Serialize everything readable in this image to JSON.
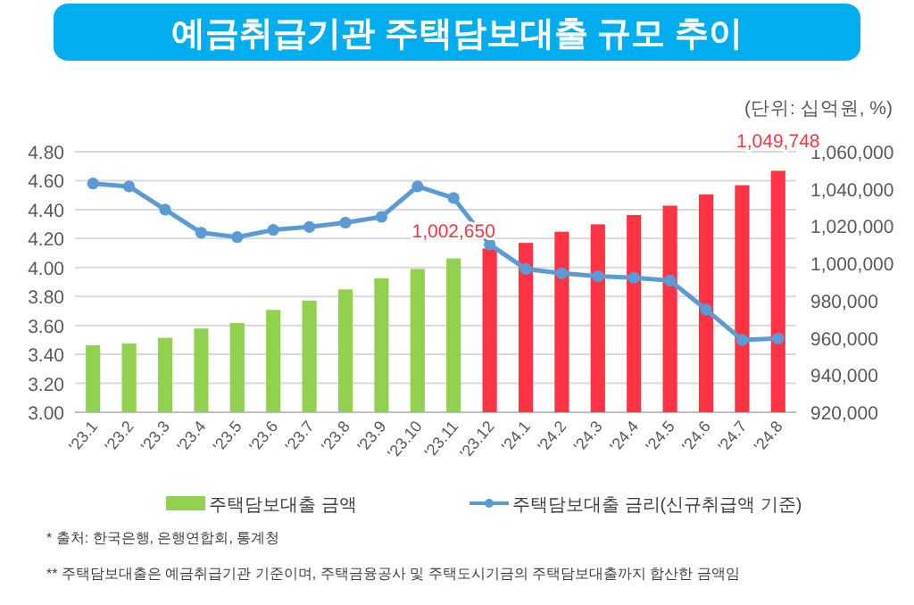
{
  "chart_data": {
    "type": "bar",
    "title": "예금취급기관 주택담보대출 규모 추이",
    "categories": [
      "'23.1",
      "'23.2",
      "'23.3",
      "'23.4",
      "'23.5",
      "'23.6",
      "'23.7",
      "'23.8",
      "'23.9",
      "'23.10",
      "'23.11",
      "'23.12",
      "'24.1",
      "'24.2",
      "'24.3",
      "'24.4",
      "'24.5",
      "'24.6",
      "'24.7",
      "'24.8"
    ],
    "series": [
      {
        "name": "주택담보대출 금액",
        "axis": "y2",
        "color": "#92d050",
        "colors": [
          "#92d050",
          "#92d050",
          "#92d050",
          "#92d050",
          "#92d050",
          "#92d050",
          "#92d050",
          "#92d050",
          "#92d050",
          "#92d050",
          "#92d050",
          "#ff3344",
          "#ff3344",
          "#ff3344",
          "#ff3344",
          "#ff3344",
          "#ff3344",
          "#ff3344",
          "#ff3344",
          "#ff3344"
        ],
        "values": [
          956000,
          957000,
          960000,
          965000,
          968000,
          975000,
          980000,
          986000,
          992000,
          997000,
          1002650,
          1008000,
          1011000,
          1017000,
          1021000,
          1026000,
          1031000,
          1037000,
          1042000,
          1049748
        ],
        "value_labels": [
          null,
          null,
          null,
          null,
          null,
          null,
          null,
          null,
          null,
          null,
          "1,002,650",
          null,
          null,
          null,
          null,
          null,
          null,
          null,
          null,
          "1,049,748"
        ]
      },
      {
        "name": "주택담보대출 금리(신규취급액 기준)",
        "type": "line",
        "color": "#5b9bd5",
        "marker": "circle",
        "values": [
          4.58,
          4.56,
          4.4,
          4.24,
          4.21,
          4.26,
          4.28,
          4.31,
          4.35,
          4.56,
          4.48,
          4.16,
          3.99,
          3.96,
          3.94,
          3.93,
          3.91,
          3.71,
          3.5,
          3.51
        ]
      }
    ],
    "ylim": [
      3.0,
      4.8
    ],
    "yticks": [
      {
        "value": 3.0,
        "label": "3.00"
      },
      {
        "value": 3.2,
        "label": "3.20"
      },
      {
        "value": 3.4,
        "label": "3.40"
      },
      {
        "value": 3.6,
        "label": "3.60"
      },
      {
        "value": 3.8,
        "label": "3.80"
      },
      {
        "value": 4.0,
        "label": "4.00"
      },
      {
        "value": 4.2,
        "label": "4.20"
      },
      {
        "value": 4.4,
        "label": "4.40"
      },
      {
        "value": 4.6,
        "label": "4.60"
      },
      {
        "value": 4.8,
        "label": "4.80"
      }
    ],
    "y2lim": [
      920000,
      1060000
    ],
    "y2ticks": [
      {
        "value": 920000,
        "label": "920,000"
      },
      {
        "value": 940000,
        "label": "940,000"
      },
      {
        "value": 960000,
        "label": "960,000"
      },
      {
        "value": 980000,
        "label": "980,000"
      },
      {
        "value": 1000000,
        "label": "1,000,000"
      },
      {
        "value": 1020000,
        "label": "1,020,000"
      },
      {
        "value": 1040000,
        "label": "1,040,000"
      },
      {
        "value": 1060000,
        "label": "1,060,000"
      }
    ],
    "grid": "y",
    "legend": "bottom",
    "annotations": [
      "(단위: 십억원, %)",
      "* 출처: 한국은행, 은행연합회, 통계청",
      "** 주택담보대출은 예금취급기관 기준이며, 주택금융공사 및 주택도시기금의 주택담보대출까지 합산한 금액임"
    ]
  }
}
